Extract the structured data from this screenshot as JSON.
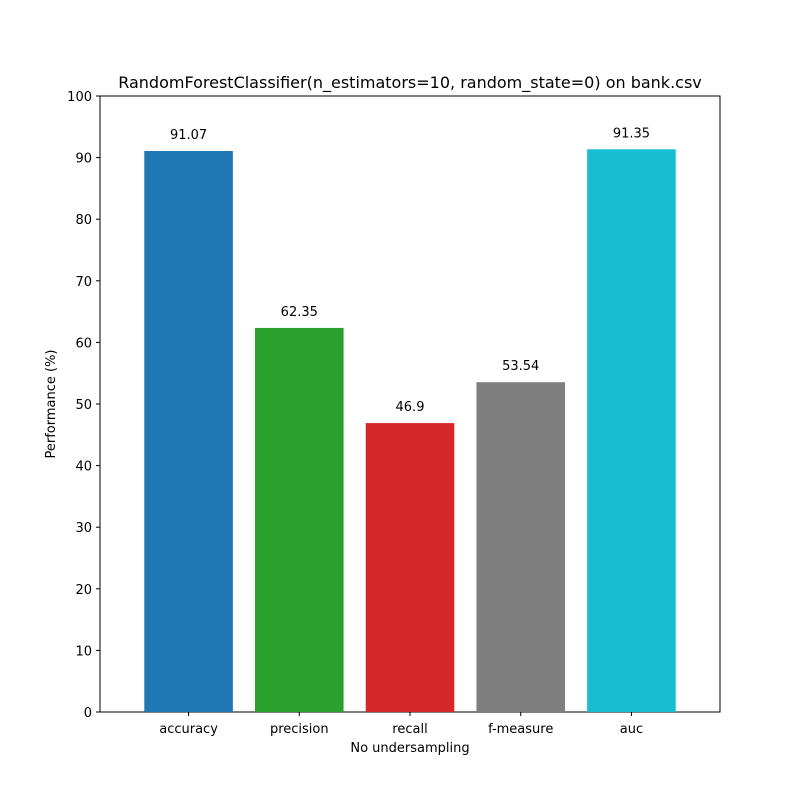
{
  "chart_data": {
    "type": "bar",
    "title": "RandomForestClassifier(n_estimators=10, random_state=0) on bank.csv",
    "xlabel": "No undersampling",
    "ylabel": "Performance (%)",
    "ylim": [
      0,
      100
    ],
    "yticks": [
      0,
      10,
      20,
      30,
      40,
      50,
      60,
      70,
      80,
      90,
      100
    ],
    "categories": [
      "accuracy",
      "precision",
      "recall",
      "f-measure",
      "auc"
    ],
    "values": [
      91.07,
      62.35,
      46.9,
      53.54,
      91.35
    ],
    "value_labels": [
      "91.07",
      "62.35",
      "46.9",
      "53.54",
      "91.35"
    ],
    "colors": [
      "#1f77b4",
      "#2ca02c",
      "#d62728",
      "#7f7f7f",
      "#17becf"
    ],
    "grid": false,
    "legend": "none"
  }
}
